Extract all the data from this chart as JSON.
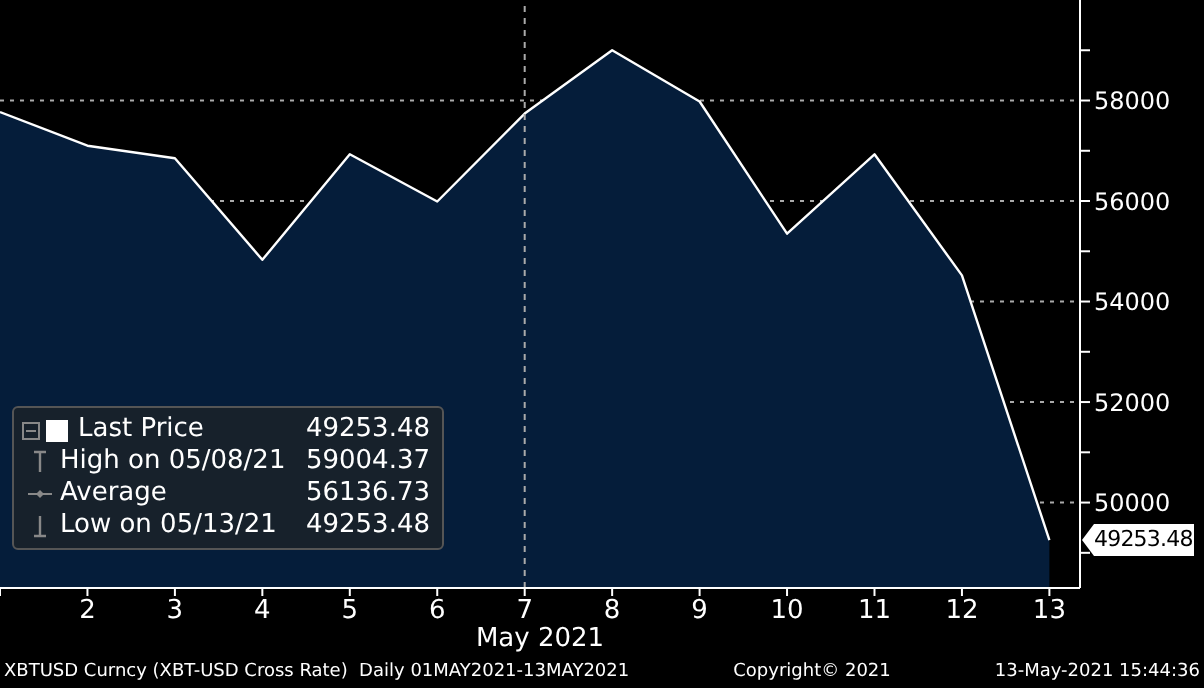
{
  "chart_data": {
    "type": "area",
    "xlabel": "May 2021",
    "x": [
      1,
      2,
      3,
      4,
      5,
      6,
      7,
      8,
      9,
      10,
      11,
      12,
      13
    ],
    "series": [
      {
        "name": "Last Price",
        "color": "#051d3a",
        "values": [
          57770,
          57100,
          56850,
          54830,
          56930,
          55990,
          57740,
          59000,
          57980,
          55350,
          56930,
          54520,
          49253.48
        ]
      }
    ],
    "xlim": [
      1,
      13.35
    ],
    "xticks": [
      {
        "value": 1,
        "label": null
      },
      2,
      3,
      4,
      5,
      6,
      7,
      8,
      9,
      10,
      11,
      12,
      13
    ],
    "ylim": [
      48300,
      60000
    ],
    "yticks": [
      {
        "value": 49000,
        "label": null
      },
      50000,
      {
        "value": 51000,
        "label": null
      },
      52000,
      {
        "value": 53000,
        "label": null
      },
      54000,
      {
        "value": 55000,
        "label": null
      },
      56000,
      {
        "value": 57000,
        "label": null
      },
      58000,
      {
        "value": 59000,
        "label": null
      }
    ],
    "grid": "y",
    "ref_lines": [
      {
        "axis": "x",
        "value": 7,
        "line_style": "dashed"
      }
    ],
    "legend": "bottom left",
    "annotations": [
      "49253.48",
      "49253.48",
      "High on 05/08/21 59004.37",
      "Average 56136.73",
      "Low on 05/13/21 49253.48",
      "XBTUSD Curncy (XBT-USD Cross Rate)  Daily 01MAY2021-13MAY2021",
      "Copyright© 2021",
      "13-May-2021 15:44:36"
    ]
  }
}
